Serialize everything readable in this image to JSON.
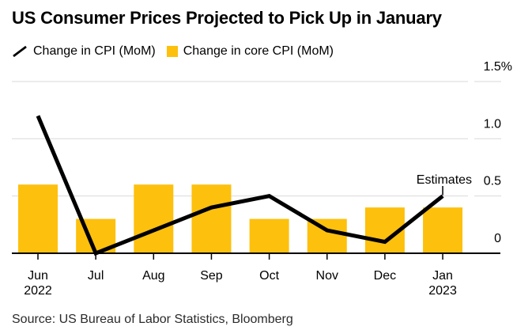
{
  "title": "US Consumer Prices Projected to Pick Up in January",
  "legend": [
    {
      "label": "Change in CPI (MoM)",
      "marker": "line-icon",
      "color": "#000000"
    },
    {
      "label": "Change in core CPI (MoM)",
      "marker": "square-icon",
      "color": "#FDC00D"
    }
  ],
  "annotation_label": "Estimates",
  "source": "Source: US Bureau of Labor Statistics, Bloomberg",
  "colors": {
    "bar": "#FDC00D",
    "line": "#000000",
    "grid": "#d9d9d9",
    "axis": "#000000",
    "text": "#000000"
  },
  "chart_data": {
    "type": "combo-bar-line",
    "categories": [
      "Jun",
      "Jul",
      "Aug",
      "Sep",
      "Oct",
      "Nov",
      "Dec",
      "Jan"
    ],
    "year_labels": [
      {
        "index": 0,
        "label": "2022"
      },
      {
        "index": 7,
        "label": "2023"
      }
    ],
    "series": [
      {
        "name": "Change in CPI (MoM)",
        "type": "line",
        "color": "#000000",
        "values": [
          1.2,
          0.0,
          0.2,
          0.4,
          0.5,
          0.2,
          0.1,
          0.5
        ]
      },
      {
        "name": "Change in core CPI (MoM)",
        "type": "bar",
        "color": "#FDC00D",
        "values": [
          0.6,
          0.3,
          0.6,
          0.6,
          0.3,
          0.3,
          0.4,
          0.4
        ]
      }
    ],
    "y_axis": {
      "side": "right",
      "tick_labels": [
        "1.5%",
        "1.0",
        "0.5",
        "0"
      ],
      "tick_values": [
        1.5,
        1.0,
        0.5,
        0
      ],
      "ylim": [
        0,
        1.5
      ]
    },
    "grid": "horizontal",
    "annotation": {
      "text": "Estimates",
      "x_index": 7,
      "value": 0.5
    },
    "legend_position": "top-left"
  }
}
